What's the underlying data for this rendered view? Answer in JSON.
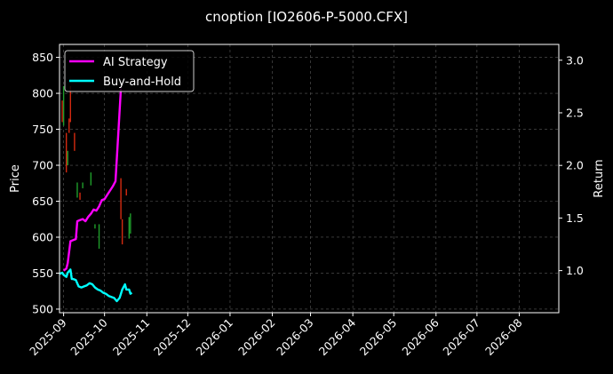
{
  "chart_data": {
    "type": "line",
    "title": "cnoption [IO2606-P-5000.CFX]",
    "ylabel_left": "Price",
    "ylabel_right": "Return",
    "xlim": [
      "2025-08-29",
      "2026-08-30"
    ],
    "ylim_left": [
      495,
      868
    ],
    "ylim_right": [
      0.6,
      3.15
    ],
    "grid": true,
    "legend_position": "top-left",
    "x_ticks": [
      {
        "date": "2025-09-01",
        "label": "2025-09"
      },
      {
        "date": "2025-10-01",
        "label": "2025-10"
      },
      {
        "date": "2025-11-01",
        "label": "2025-11"
      },
      {
        "date": "2025-12-01",
        "label": "2025-12"
      },
      {
        "date": "2026-01-01",
        "label": "2026-01"
      },
      {
        "date": "2026-02-01",
        "label": "2026-02"
      },
      {
        "date": "2026-03-01",
        "label": "2026-03"
      },
      {
        "date": "2026-04-01",
        "label": "2026-04"
      },
      {
        "date": "2026-05-01",
        "label": "2026-05"
      },
      {
        "date": "2026-06-01",
        "label": "2026-06"
      },
      {
        "date": "2026-07-01",
        "label": "2026-07"
      },
      {
        "date": "2026-08-01",
        "label": "2026-08"
      }
    ],
    "y_ticks_left": [
      500,
      550,
      600,
      650,
      700,
      750,
      800,
      850
    ],
    "y_ticks_right": [
      "1.0",
      "1.5",
      "2.0",
      "2.5",
      "3.0"
    ],
    "y_ticks_right_values": [
      1.0,
      1.5,
      2.0,
      2.5,
      3.0
    ],
    "candles": [
      {
        "date": "2025-08-31",
        "low": 760,
        "high": 790,
        "up": false
      },
      {
        "date": "2025-09-01",
        "low": 755,
        "high": 810,
        "up": true
      },
      {
        "date": "2025-09-03",
        "low": 690,
        "high": 745,
        "up": false
      },
      {
        "date": "2025-09-04",
        "low": 700,
        "high": 720,
        "up": true
      },
      {
        "date": "2025-09-05",
        "low": 745,
        "high": 765,
        "up": false
      },
      {
        "date": "2025-09-06",
        "low": 760,
        "high": 810,
        "up": false
      },
      {
        "date": "2025-09-09",
        "low": 720,
        "high": 745,
        "up": false
      },
      {
        "date": "2025-09-11",
        "low": 655,
        "high": 676,
        "up": true
      },
      {
        "date": "2025-09-13",
        "low": 652,
        "high": 662,
        "up": false
      },
      {
        "date": "2025-09-15",
        "low": 668,
        "high": 676,
        "up": true
      },
      {
        "date": "2025-09-21",
        "low": 672,
        "high": 690,
        "up": true
      },
      {
        "date": "2025-09-24",
        "low": 612,
        "high": 618,
        "up": true
      },
      {
        "date": "2025-09-27",
        "low": 584,
        "high": 618,
        "up": true
      },
      {
        "date": "2025-10-13",
        "low": 625,
        "high": 682,
        "up": false
      },
      {
        "date": "2025-10-14",
        "low": 590,
        "high": 625,
        "up": false
      },
      {
        "date": "2025-10-17",
        "low": 658,
        "high": 667,
        "up": false
      },
      {
        "date": "2025-10-19",
        "low": 598,
        "high": 628,
        "up": true
      },
      {
        "date": "2025-10-20",
        "low": 605,
        "high": 633,
        "up": true
      }
    ],
    "series": [
      {
        "name": "AI Strategy",
        "color": "#ff00ff",
        "x": [
          "2025-09-01",
          "2025-09-03",
          "2025-09-04",
          "2025-09-06",
          "2025-09-08",
          "2025-09-10",
          "2025-09-11",
          "2025-09-13",
          "2025-09-15",
          "2025-09-17",
          "2025-09-19",
          "2025-09-21",
          "2025-09-23",
          "2025-09-25",
          "2025-09-27",
          "2025-09-29",
          "2025-10-01",
          "2025-10-03",
          "2025-10-05",
          "2025-10-07",
          "2025-10-09",
          "2025-10-11",
          "2025-10-13"
        ],
        "values": [
          1.0,
          1.02,
          1.07,
          1.28,
          1.29,
          1.3,
          1.47,
          1.48,
          1.49,
          1.47,
          1.51,
          1.54,
          1.58,
          1.57,
          1.61,
          1.67,
          1.68,
          1.72,
          1.76,
          1.8,
          1.85,
          2.28,
          2.73
        ]
      },
      {
        "name": "Buy-and-Hold",
        "color": "#00ffff",
        "x": [
          "2025-08-29",
          "2025-08-31",
          "2025-09-01",
          "2025-09-03",
          "2025-09-04",
          "2025-09-06",
          "2025-09-07",
          "2025-09-08",
          "2025-09-10",
          "2025-09-12",
          "2025-09-14",
          "2025-09-16",
          "2025-09-18",
          "2025-09-20",
          "2025-09-22",
          "2025-09-24",
          "2025-09-26",
          "2025-09-28",
          "2025-09-30",
          "2025-10-02",
          "2025-10-04",
          "2025-10-06",
          "2025-10-08",
          "2025-10-10",
          "2025-10-12",
          "2025-10-13",
          "2025-10-14",
          "2025-10-16",
          "2025-10-17",
          "2025-10-19",
          "2025-10-20",
          "2025-10-21"
        ],
        "values": [
          0.97,
          0.98,
          0.96,
          0.94,
          0.98,
          1.01,
          0.92,
          0.92,
          0.91,
          0.85,
          0.84,
          0.85,
          0.86,
          0.88,
          0.87,
          0.84,
          0.82,
          0.81,
          0.79,
          0.78,
          0.76,
          0.75,
          0.74,
          0.71,
          0.74,
          0.78,
          0.82,
          0.87,
          0.82,
          0.82,
          0.78,
          0.79
        ]
      }
    ]
  }
}
